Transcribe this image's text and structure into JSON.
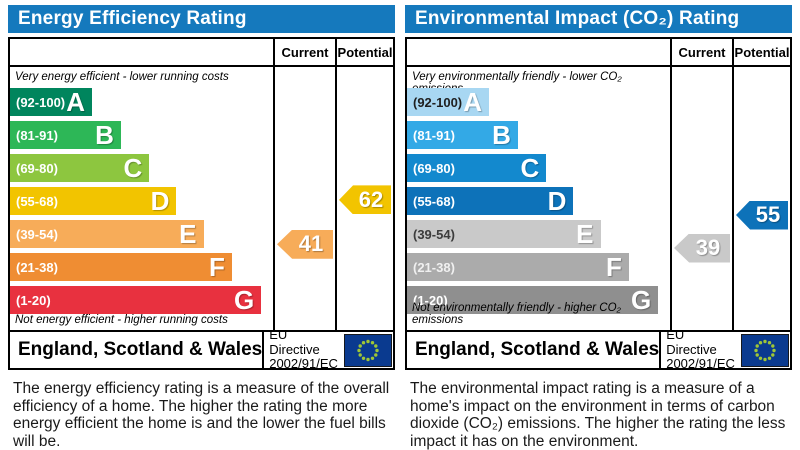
{
  "theme": {
    "header_bg": "#1579bd",
    "header_text": "#ffffff",
    "border": "#000000"
  },
  "eu_flag": {
    "background": "#0a3a8f",
    "star_color": "#9fc636"
  },
  "chart_data": [
    {
      "type": "bar",
      "title": "Energy Efficiency Rating",
      "columns": [
        "Current",
        "Potential"
      ],
      "top_note": "Very energy efficient - lower running costs",
      "bottom_note": "Not energy efficient - higher running costs",
      "bands": [
        {
          "letter": "A",
          "range_label": "(92-100)",
          "min": 92,
          "max": 100,
          "color": "#00855d",
          "width_pct": 31.8,
          "label_color": "#ffffff"
        },
        {
          "letter": "B",
          "range_label": "(81-91)",
          "min": 81,
          "max": 91,
          "color": "#2db757",
          "width_pct": 43.0,
          "label_color": "#ffffff"
        },
        {
          "letter": "C",
          "range_label": "(69-80)",
          "min": 69,
          "max": 80,
          "color": "#8dc63f",
          "width_pct": 54.0,
          "label_color": "#ffffff"
        },
        {
          "letter": "D",
          "range_label": "(55-68)",
          "min": 55,
          "max": 68,
          "color": "#f2c400",
          "width_pct": 64.5,
          "label_color": "#ffffff"
        },
        {
          "letter": "E",
          "range_label": "(39-54)",
          "min": 39,
          "max": 54,
          "color": "#f7ac59",
          "width_pct": 75.0,
          "label_color": "#ffffff"
        },
        {
          "letter": "F",
          "range_label": "(21-38)",
          "min": 21,
          "max": 38,
          "color": "#ef8d33",
          "width_pct": 86.0,
          "label_color": "#ffffff"
        },
        {
          "letter": "G",
          "range_label": "(1-20)",
          "min": 1,
          "max": 20,
          "color": "#e8313f",
          "width_pct": 97.4,
          "label_color": "#ffffff"
        }
      ],
      "current": {
        "value": 41,
        "band": "E"
      },
      "potential": {
        "value": 62,
        "band": "D"
      },
      "footer": {
        "region": "England, Scotland & Wales",
        "directive_line1": "EU Directive",
        "directive_line2": "2002/91/EC"
      },
      "description": "The energy efficiency rating is a measure of the overall efficiency of a home. The higher the rating the more energy efficient the home is and the lower the fuel bills will be."
    },
    {
      "type": "bar",
      "title": "Environmental Impact (CO₂) Rating",
      "columns": [
        "Current",
        "Potential"
      ],
      "top_note": "Very environmentally friendly - lower CO₂ emissions",
      "bottom_note": "Not environmentally friendly - higher CO₂ emissions",
      "bands": [
        {
          "letter": "A",
          "range_label": "(92-100)",
          "min": 92,
          "max": 100,
          "color": "#a8d7f2",
          "width_pct": 31.8,
          "label_color": "#1f1f1f"
        },
        {
          "letter": "B",
          "range_label": "(81-91)",
          "min": 81,
          "max": 91,
          "color": "#33a9e6",
          "width_pct": 43.0,
          "label_color": "#ffffff"
        },
        {
          "letter": "C",
          "range_label": "(69-80)",
          "min": 69,
          "max": 80,
          "color": "#1389ce",
          "width_pct": 54.0,
          "label_color": "#ffffff"
        },
        {
          "letter": "D",
          "range_label": "(55-68)",
          "min": 55,
          "max": 68,
          "color": "#0d72b9",
          "width_pct": 64.5,
          "label_color": "#ffffff"
        },
        {
          "letter": "E",
          "range_label": "(39-54)",
          "min": 39,
          "max": 54,
          "color": "#c9c9c9",
          "width_pct": 75.0,
          "label_color": "#3c3c3c"
        },
        {
          "letter": "F",
          "range_label": "(21-38)",
          "min": 21,
          "max": 38,
          "color": "#ababab",
          "width_pct": 86.0,
          "label_color": "#f0f0f0"
        },
        {
          "letter": "G",
          "range_label": "(1-20)",
          "min": 1,
          "max": 20,
          "color": "#8f8f8f",
          "width_pct": 97.4,
          "label_color": "#ffffff"
        }
      ],
      "current": {
        "value": 39,
        "band": "E"
      },
      "potential": {
        "value": 55,
        "band": "D"
      },
      "footer": {
        "region": "England, Scotland & Wales",
        "directive_line1": "EU Directive",
        "directive_line2": "2002/91/EC"
      },
      "description": "The environmental impact rating is a measure of a home's impact on the environment in terms of carbon dioxide (CO₂) emissions. The higher the rating the less impact it has on the environment."
    }
  ]
}
